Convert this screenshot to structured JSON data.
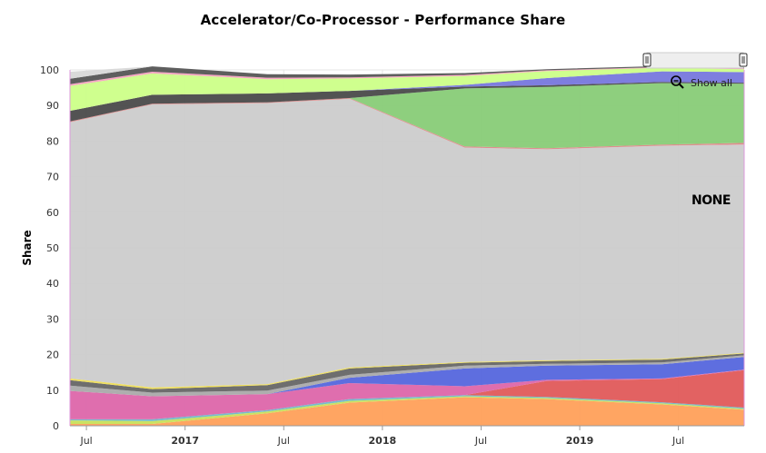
{
  "chart_data": {
    "type": "area",
    "title": "Accelerator/Co-Processor - Performance Share",
    "ylabel": "Share",
    "xlabel": "",
    "ylim": [
      0,
      100
    ],
    "y_ticks": [
      0,
      10,
      20,
      30,
      40,
      50,
      60,
      70,
      80,
      90,
      100
    ],
    "x": [
      "2016-06",
      "2016-11",
      "2017-06",
      "2017-11",
      "2018-06",
      "2018-11",
      "2019-06",
      "2019-11"
    ],
    "x_ticks": [
      {
        "label": "Jul",
        "date": "2016-07",
        "bold": false
      },
      {
        "label": "2017",
        "date": "2017-01",
        "bold": true
      },
      {
        "label": "Jul",
        "date": "2017-07",
        "bold": false
      },
      {
        "label": "2018",
        "date": "2018-01",
        "bold": true
      },
      {
        "label": "Jul",
        "date": "2018-07",
        "bold": false
      },
      {
        "label": "2019",
        "date": "2019-01",
        "bold": true
      },
      {
        "label": "Jul",
        "date": "2019-07",
        "bold": false
      }
    ],
    "series": [
      {
        "color": "#ffa05a",
        "values": [
          0.5,
          0.5,
          3.5,
          6.5,
          8.0,
          7.5,
          6.0,
          4.5
        ]
      },
      {
        "color": "#c8e05a",
        "values": [
          1.0,
          0.8,
          0.5,
          0.5,
          0.3,
          0.3,
          0.3,
          0.3
        ]
      },
      {
        "color": "#6fb8c8",
        "values": [
          0.3,
          0.5,
          0.4,
          0.5,
          0.3,
          0.3,
          0.3,
          0.3
        ]
      },
      {
        "color": "#e05a5a",
        "values": [
          0,
          0,
          0,
          0,
          0,
          4.5,
          6.5,
          10.5
        ]
      },
      {
        "color": "#dd66aa",
        "values": [
          8.0,
          6.5,
          4.5,
          4.5,
          2.5,
          0.3,
          0.2,
          0.2
        ]
      },
      {
        "color": "#5566dd",
        "values": [
          0,
          0,
          0,
          1.5,
          5.0,
          4.0,
          4.0,
          3.5
        ]
      },
      {
        "color": "#aaaaaa",
        "values": [
          1.5,
          1.0,
          1.0,
          0.8,
          0.8,
          0.5,
          0.5,
          0.5
        ]
      },
      {
        "color": "#666666",
        "values": [
          1.5,
          1.0,
          1.5,
          1.8,
          0.8,
          0.8,
          0.8,
          0.5
        ]
      },
      {
        "color": "#eedd55",
        "values": [
          0.5,
          0.5,
          0.3,
          0.3,
          0.2,
          0.2,
          0.2,
          0.2
        ]
      },
      {
        "color": "#cccccc",
        "values": [
          72.0,
          79.5,
          79.0,
          75.5,
          60.3,
          59.3,
          59.9,
          58.5
        ]
      },
      {
        "color": "#dd8888",
        "values": [
          0.2,
          0.2,
          0.2,
          0.2,
          0.3,
          0.3,
          0.3,
          0.5
        ]
      },
      {
        "color": "#88cc77",
        "values": [
          0,
          0,
          0,
          0,
          16.3,
          17.2,
          17.3,
          16.6
        ]
      },
      {
        "color": "#4a4a4a",
        "values": [
          3.0,
          2.5,
          2.5,
          2.0,
          0.5,
          0.5,
          0.3,
          0.3
        ]
      },
      {
        "color": "#7777dd",
        "values": [
          0,
          0,
          0,
          0,
          0.5,
          2.0,
          3.0,
          3.0
        ]
      },
      {
        "color": "#ccff88",
        "values": [
          7.0,
          6.0,
          4.0,
          3.5,
          2.5,
          2.0,
          1.0,
          0.8
        ]
      },
      {
        "color": "#f5a0c0",
        "values": [
          0.5,
          0.5,
          0.4,
          0.3,
          0.3,
          0.2,
          0.2,
          0.2
        ]
      },
      {
        "color": "#555555",
        "values": [
          1.5,
          1.5,
          1.0,
          0.8,
          0.5,
          0.3,
          0.3,
          0.3
        ]
      },
      {
        "color": "#d8d8d8",
        "values": [
          2.0,
          0.0,
          0.0,
          0.0,
          0.0,
          0.0,
          0.0,
          0.0
        ]
      }
    ],
    "annotations": [
      {
        "text": "NONE"
      }
    ],
    "grid": true,
    "legend": "none"
  },
  "controls": {
    "show_all_label": "Show all",
    "zoom_icon": "magnifier-minus-icon",
    "scrollbar_handle_icon": "scrollbar-grip-icon"
  }
}
